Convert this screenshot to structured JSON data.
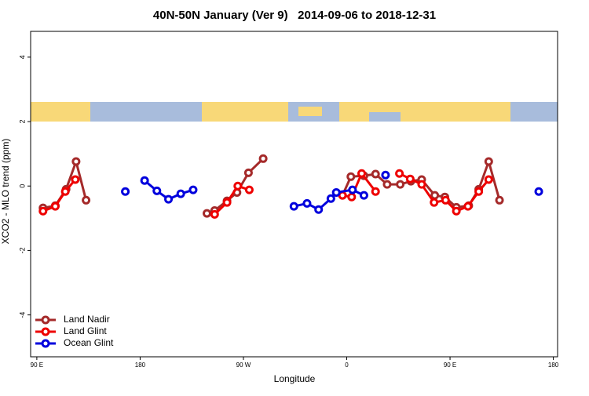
{
  "chart_data": {
    "type": "line",
    "title": "40N-50N January (Ver 9)   2014-09-06 to 2018-12-31",
    "x_label": "Longitude",
    "y_label": "XCO2 - MLO trend (ppm)",
    "xlim": [
      84.6,
      543.7
    ],
    "ylim": [
      -5.3,
      4.8
    ],
    "xticks": [
      {
        "value": 90,
        "label": "90 E"
      },
      {
        "value": 180,
        "label": "180"
      },
      {
        "value": 270,
        "label": "90 W"
      },
      {
        "value": 360,
        "label": "0"
      },
      {
        "value": 450,
        "label": "90 E"
      },
      {
        "value": 540,
        "label": "180"
      }
    ],
    "yticks": [
      -4,
      -2,
      0,
      2,
      4
    ],
    "legend": "bottom-left",
    "series": [
      {
        "name": "Land Nadir",
        "color": "#a52a2a",
        "x": [
          95.4,
          106.1,
          115.5,
          124.2,
          132.9,
          null,
          238.2,
          244.9,
          255.7,
          264.4,
          274.4,
          287.2,
          null,
          356.3,
          363.6,
          375.0,
          385.1,
          395.2,
          406.6,
          415.9,
          425.3,
          436.7,
          445.5,
          455.5,
          466.3,
          475.0,
          483.7,
          493.1
        ],
        "values": [
          -0.68,
          -0.61,
          -0.1,
          0.76,
          -0.44,
          null,
          -0.85,
          -0.76,
          -0.46,
          -0.2,
          0.41,
          0.85,
          null,
          -0.29,
          0.29,
          0.32,
          0.37,
          0.05,
          0.05,
          0.15,
          0.2,
          -0.29,
          -0.34,
          -0.66,
          -0.61,
          -0.1,
          0.76,
          -0.44
        ]
      },
      {
        "name": "Land Glint",
        "color": "#ee0000",
        "x": [
          95.4,
          106.1,
          114.8,
          123.5,
          null,
          244.9,
          255.7,
          265.1,
          275.1,
          null,
          356.3,
          364.3,
          373.0,
          385.1,
          null,
          405.9,
          415.3,
          425.3,
          436.1,
          446.1,
          455.5,
          465.6,
          475.0,
          483.7
        ],
        "values": [
          -0.78,
          -0.63,
          -0.17,
          0.2,
          null,
          -0.88,
          -0.51,
          0,
          -0.12,
          null,
          -0.29,
          -0.34,
          0.39,
          -0.17,
          null,
          0.39,
          0.22,
          0.05,
          -0.51,
          -0.44,
          -0.78,
          -0.63,
          -0.17,
          0.2
        ]
      },
      {
        "name": "Ocean Glint",
        "color": "#0000dd",
        "x": [
          167.1,
          null,
          183.9,
          194.6,
          204.7,
          215.4,
          226.2,
          null,
          314.0,
          325.4,
          335.5,
          346.2,
          350.9,
          365.0,
          375.0,
          null,
          393.8,
          null,
          527.3
        ],
        "values": [
          -0.17,
          null,
          0.17,
          -0.15,
          -0.41,
          -0.24,
          -0.12,
          null,
          -0.63,
          -0.54,
          -0.73,
          -0.39,
          -0.2,
          -0.12,
          -0.29,
          null,
          0.34,
          null,
          -0.17
        ]
      }
    ]
  }
}
